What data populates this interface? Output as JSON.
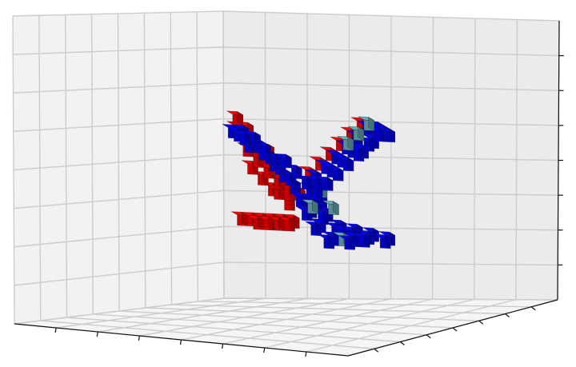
{
  "chart_data": {
    "type": "voxel",
    "title": "",
    "xlabel": "",
    "ylabel": "",
    "zlabel": "",
    "tick_labels_shown": false,
    "grid": true,
    "legend": "none",
    "colors": {
      "pane_left": "#f2f2f2",
      "pane_right": "#ebebeb",
      "pane_floor": "#f5f5f5",
      "grid": "#cccccc",
      "axis": "#111111",
      "voxel_blue": "#0000e6",
      "voxel_red": "#e60000",
      "voxel_teal": "#5f9ea8",
      "edge": "#202020"
    },
    "voxel_groups": [
      {
        "name": "",
        "color_key": "voxel_blue",
        "blocks": [
          [
            -7,
            -2,
            5
          ],
          [
            -6,
            -2,
            5
          ],
          [
            -5,
            -2,
            4
          ],
          [
            -4,
            -2,
            3
          ],
          [
            -3,
            -2,
            2
          ],
          [
            -2,
            -2,
            1
          ],
          [
            -1,
            -2,
            0
          ],
          [
            -7,
            -1,
            5
          ],
          [
            -6,
            -1,
            4
          ],
          [
            -5,
            -1,
            4
          ],
          [
            -4,
            -1,
            3
          ],
          [
            -3,
            -1,
            2
          ],
          [
            -2,
            -1,
            1
          ],
          [
            -7,
            0,
            5
          ],
          [
            -6,
            0,
            5
          ],
          [
            -5,
            0,
            4
          ],
          [
            -4,
            0,
            3
          ],
          [
            -3,
            0,
            3
          ],
          [
            -2,
            0,
            2
          ],
          [
            -1,
            0,
            1
          ],
          [
            7,
            -2,
            6
          ],
          [
            6,
            -2,
            6
          ],
          [
            5,
            -2,
            5
          ],
          [
            4,
            -2,
            4
          ],
          [
            3,
            -2,
            3
          ],
          [
            2,
            -2,
            2
          ],
          [
            1,
            -2,
            1
          ],
          [
            7,
            -1,
            6
          ],
          [
            6,
            -1,
            5
          ],
          [
            5,
            -1,
            4
          ],
          [
            4,
            -1,
            4
          ],
          [
            3,
            -1,
            3
          ],
          [
            2,
            -1,
            2
          ],
          [
            7,
            0,
            6
          ],
          [
            6,
            0,
            6
          ],
          [
            5,
            0,
            5
          ],
          [
            4,
            0,
            4
          ],
          [
            3,
            0,
            3
          ],
          [
            2,
            0,
            2
          ],
          [
            1,
            0,
            1
          ],
          [
            0,
            -1,
            -2
          ],
          [
            0,
            -1,
            -1
          ],
          [
            0,
            -1,
            0
          ],
          [
            0,
            0,
            -1
          ],
          [
            0,
            0,
            0
          ],
          [
            0,
            0,
            1
          ],
          [
            1,
            -1,
            -1
          ],
          [
            -1,
            -1,
            -1
          ],
          [
            1,
            0,
            -2
          ],
          [
            -1,
            0,
            -2
          ],
          [
            0,
            1,
            -2
          ],
          [
            2,
            -3,
            -4
          ],
          [
            3,
            -2,
            -4
          ],
          [
            4,
            -1,
            -4
          ],
          [
            5,
            0,
            -4
          ],
          [
            6,
            1,
            -4
          ],
          [
            5,
            -2,
            -4
          ],
          [
            4,
            -3,
            -4
          ],
          [
            3,
            1,
            -4
          ],
          [
            2,
            2,
            -4
          ],
          [
            1,
            1,
            -4
          ],
          [
            0,
            2,
            -4
          ],
          [
            7,
            0,
            -4
          ],
          [
            6,
            -1,
            -4
          ],
          [
            1,
            -2,
            -4
          ],
          [
            3,
            -1,
            -4
          ],
          [
            4,
            1,
            -4
          ]
        ]
      },
      {
        "name": "",
        "color_key": "voxel_red",
        "blocks": [
          [
            -6,
            -3,
            6
          ],
          [
            -6,
            -3,
            5
          ],
          [
            -5,
            -3,
            5
          ],
          [
            -5,
            -3,
            4
          ],
          [
            -4,
            -3,
            3
          ],
          [
            -3,
            -3,
            3
          ],
          [
            -3,
            -3,
            2
          ],
          [
            -2,
            -3,
            1
          ],
          [
            -2,
            -3,
            0
          ],
          [
            -1,
            -3,
            0
          ],
          [
            -1,
            -3,
            -1
          ],
          [
            0,
            -3,
            -1
          ],
          [
            -4,
            -3,
            2
          ],
          [
            -3,
            -3,
            1
          ],
          [
            -2,
            -3,
            -1
          ],
          [
            -1,
            -3,
            -2
          ],
          [
            -5,
            -3,
            3
          ],
          [
            -3,
            -4,
            0
          ],
          [
            -2,
            -4,
            -1
          ],
          [
            -4,
            -4,
            1
          ],
          [
            6,
            -3,
            6
          ],
          [
            5,
            -3,
            5
          ],
          [
            4,
            -3,
            4
          ],
          [
            3,
            -3,
            3
          ],
          [
            2,
            -3,
            2
          ],
          [
            1,
            -3,
            1
          ],
          [
            -5,
            -4,
            -4
          ],
          [
            -4,
            -4,
            -4
          ],
          [
            -3,
            -4,
            -4
          ],
          [
            -2,
            -4,
            -4
          ],
          [
            -1,
            -4,
            -4
          ],
          [
            0,
            -4,
            -4
          ],
          [
            -4,
            -3,
            -4
          ],
          [
            -3,
            -3,
            -4
          ],
          [
            -2,
            -3,
            -4
          ],
          [
            -1,
            -3,
            -4
          ]
        ]
      },
      {
        "name": "",
        "color_key": "voxel_teal",
        "blocks": [
          [
            5,
            0,
            7
          ],
          [
            4,
            0,
            6
          ],
          [
            3,
            0,
            5
          ],
          [
            1,
            1,
            -1
          ],
          [
            -1,
            1,
            -1
          ],
          [
            2,
            1,
            -4
          ],
          [
            1,
            -1,
            0
          ]
        ]
      }
    ]
  }
}
